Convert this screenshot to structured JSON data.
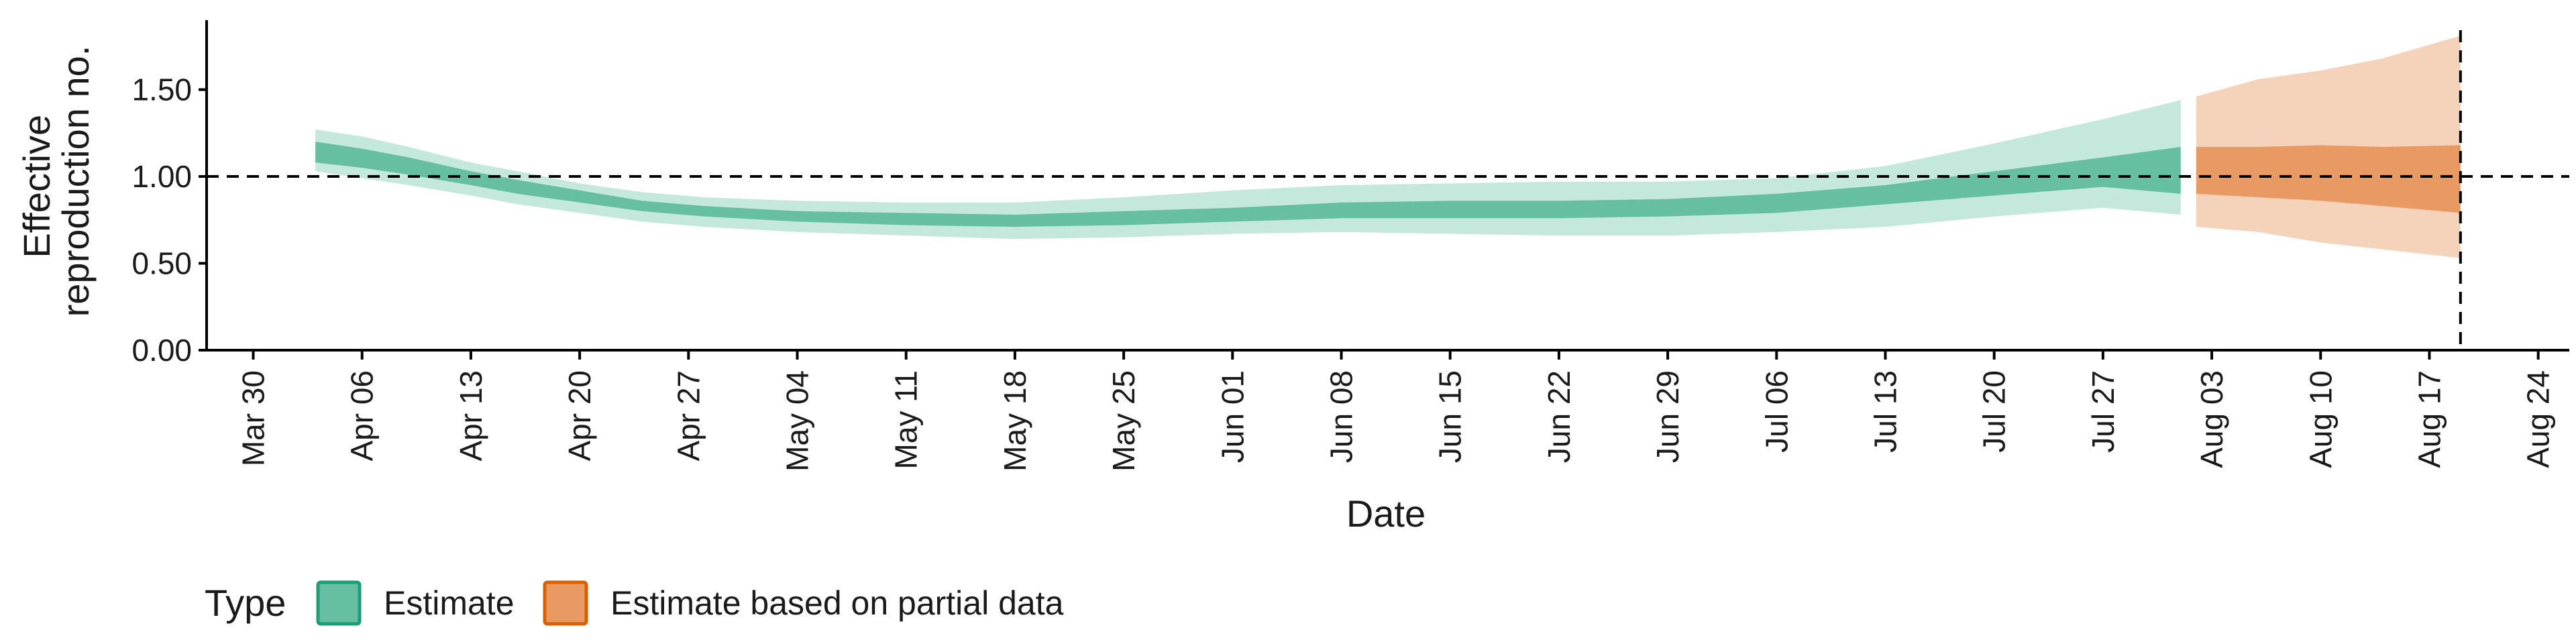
{
  "chart_data": {
    "type": "area",
    "xlabel": "Date",
    "ylabel_lines": [
      "Effective",
      "reproduction no."
    ],
    "ylim": [
      0,
      1.9
    ],
    "xlim": [
      "2020-03-27",
      "2020-08-26"
    ],
    "y_ticks": [
      {
        "value": 0.0,
        "label": "0.00"
      },
      {
        "value": 0.5,
        "label": "0.50"
      },
      {
        "value": 1.0,
        "label": "1.00"
      },
      {
        "value": 1.5,
        "label": "1.50"
      }
    ],
    "x_ticks": [
      {
        "date": "2020-03-30",
        "label": "Mar 30"
      },
      {
        "date": "2020-04-06",
        "label": "Apr 06"
      },
      {
        "date": "2020-04-13",
        "label": "Apr 13"
      },
      {
        "date": "2020-04-20",
        "label": "Apr 20"
      },
      {
        "date": "2020-04-27",
        "label": "Apr 27"
      },
      {
        "date": "2020-05-04",
        "label": "May 04"
      },
      {
        "date": "2020-05-11",
        "label": "May 11"
      },
      {
        "date": "2020-05-18",
        "label": "May 18"
      },
      {
        "date": "2020-05-25",
        "label": "May 25"
      },
      {
        "date": "2020-06-01",
        "label": "Jun 01"
      },
      {
        "date": "2020-06-08",
        "label": "Jun 08"
      },
      {
        "date": "2020-06-15",
        "label": "Jun 15"
      },
      {
        "date": "2020-06-22",
        "label": "Jun 22"
      },
      {
        "date": "2020-06-29",
        "label": "Jun 29"
      },
      {
        "date": "2020-07-06",
        "label": "Jul 06"
      },
      {
        "date": "2020-07-13",
        "label": "Jul 13"
      },
      {
        "date": "2020-07-20",
        "label": "Jul 20"
      },
      {
        "date": "2020-07-27",
        "label": "Jul 27"
      },
      {
        "date": "2020-08-03",
        "label": "Aug 03"
      },
      {
        "date": "2020-08-10",
        "label": "Aug 10"
      },
      {
        "date": "2020-08-17",
        "label": "Aug 17"
      },
      {
        "date": "2020-08-24",
        "label": "Aug 24"
      }
    ],
    "hline_y": 1.0,
    "vline_date": "2020-08-19",
    "series": [
      {
        "name": "Estimate",
        "colors": {
          "inner": "#66bfa0",
          "outer": "#c5e8dc",
          "outline": "#1b9e77"
        },
        "points": [
          {
            "date": "2020-04-03",
            "median": 1.15,
            "inner": [
              1.08,
              1.2
            ],
            "outer": [
              1.03,
              1.27
            ]
          },
          {
            "date": "2020-04-06",
            "median": 1.11,
            "inner": [
              1.05,
              1.16
            ],
            "outer": [
              0.99,
              1.23
            ]
          },
          {
            "date": "2020-04-09",
            "median": 1.06,
            "inner": [
              1.01,
              1.11
            ],
            "outer": [
              0.95,
              1.17
            ]
          },
          {
            "date": "2020-04-13",
            "median": 0.99,
            "inner": [
              0.95,
              1.03
            ],
            "outer": [
              0.89,
              1.08
            ]
          },
          {
            "date": "2020-04-16",
            "median": 0.94,
            "inner": [
              0.9,
              0.98
            ],
            "outer": [
              0.84,
              1.03
            ]
          },
          {
            "date": "2020-04-20",
            "median": 0.88,
            "inner": [
              0.85,
              0.92
            ],
            "outer": [
              0.79,
              0.96
            ]
          },
          {
            "date": "2020-04-24",
            "median": 0.83,
            "inner": [
              0.8,
              0.86
            ],
            "outer": [
              0.74,
              0.91
            ]
          },
          {
            "date": "2020-04-28",
            "median": 0.8,
            "inner": [
              0.77,
              0.83
            ],
            "outer": [
              0.71,
              0.88
            ]
          },
          {
            "date": "2020-05-04",
            "median": 0.77,
            "inner": [
              0.74,
              0.8
            ],
            "outer": [
              0.68,
              0.86
            ]
          },
          {
            "date": "2020-05-11",
            "median": 0.76,
            "inner": [
              0.72,
              0.79
            ],
            "outer": [
              0.66,
              0.85
            ]
          },
          {
            "date": "2020-05-18",
            "median": 0.75,
            "inner": [
              0.71,
              0.78
            ],
            "outer": [
              0.64,
              0.85
            ]
          },
          {
            "date": "2020-05-25",
            "median": 0.76,
            "inner": [
              0.72,
              0.8
            ],
            "outer": [
              0.65,
              0.88
            ]
          },
          {
            "date": "2020-06-01",
            "median": 0.78,
            "inner": [
              0.74,
              0.82
            ],
            "outer": [
              0.67,
              0.92
            ]
          },
          {
            "date": "2020-06-08",
            "median": 0.8,
            "inner": [
              0.76,
              0.85
            ],
            "outer": [
              0.68,
              0.95
            ]
          },
          {
            "date": "2020-06-15",
            "median": 0.81,
            "inner": [
              0.76,
              0.86
            ],
            "outer": [
              0.67,
              0.96
            ]
          },
          {
            "date": "2020-06-22",
            "median": 0.81,
            "inner": [
              0.76,
              0.86
            ],
            "outer": [
              0.66,
              0.97
            ]
          },
          {
            "date": "2020-06-29",
            "median": 0.82,
            "inner": [
              0.77,
              0.87
            ],
            "outer": [
              0.66,
              0.97
            ]
          },
          {
            "date": "2020-07-06",
            "median": 0.85,
            "inner": [
              0.79,
              0.9
            ],
            "outer": [
              0.68,
              0.99
            ]
          },
          {
            "date": "2020-07-13",
            "median": 0.9,
            "inner": [
              0.84,
              0.95
            ],
            "outer": [
              0.71,
              1.06
            ]
          },
          {
            "date": "2020-07-20",
            "median": 0.96,
            "inner": [
              0.89,
              1.03
            ],
            "outer": [
              0.77,
              1.19
            ]
          },
          {
            "date": "2020-07-27",
            "median": 1.02,
            "inner": [
              0.94,
              1.11
            ],
            "outer": [
              0.82,
              1.33
            ]
          },
          {
            "date": "2020-08-01",
            "median": 1.03,
            "inner": [
              0.9,
              1.17
            ],
            "outer": [
              0.78,
              1.44
            ]
          }
        ]
      },
      {
        "name": "Estimate based on partial data",
        "colors": {
          "inner": "#e89a62",
          "outer": "#f5d3bb",
          "outline": "#d95f02"
        },
        "points": [
          {
            "date": "2020-08-02",
            "median": 1.03,
            "inner": [
              0.9,
              1.17
            ],
            "outer": [
              0.71,
              1.46
            ]
          },
          {
            "date": "2020-08-06",
            "median": 1.02,
            "inner": [
              0.88,
              1.17
            ],
            "outer": [
              0.68,
              1.56
            ]
          },
          {
            "date": "2020-08-10",
            "median": 1.01,
            "inner": [
              0.86,
              1.18
            ],
            "outer": [
              0.62,
              1.61
            ]
          },
          {
            "date": "2020-08-14",
            "median": 0.99,
            "inner": [
              0.83,
              1.17
            ],
            "outer": [
              0.58,
              1.68
            ]
          },
          {
            "date": "2020-08-19",
            "median": 0.98,
            "inner": [
              0.79,
              1.18
            ],
            "outer": [
              0.53,
              1.81
            ]
          }
        ]
      }
    ],
    "legend": {
      "title": "Type",
      "placement": "bottom-left",
      "items": [
        "Estimate",
        "Estimate based on partial data"
      ]
    }
  }
}
